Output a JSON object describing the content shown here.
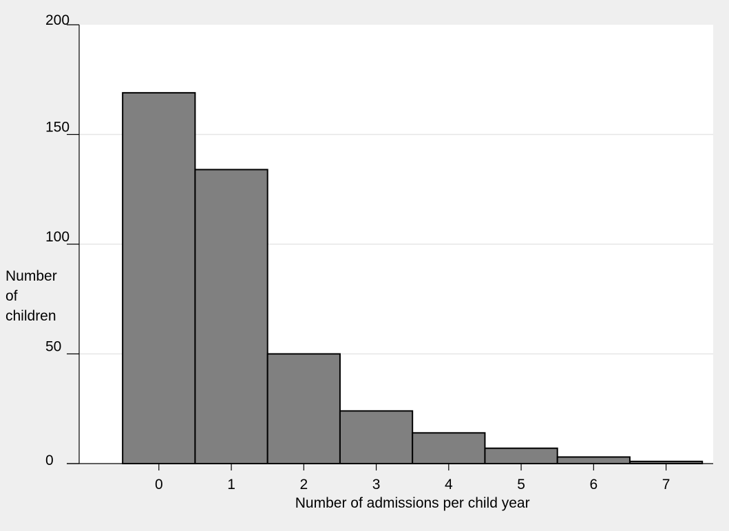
{
  "chart_data": {
    "type": "bar",
    "title": "",
    "xlabel": "Number of admissions per child year",
    "ylabel_lines": [
      "Number",
      "of",
      "children"
    ],
    "categories": [
      "0",
      "1",
      "2",
      "3",
      "4",
      "5",
      "6",
      "7"
    ],
    "values": [
      169,
      134,
      50,
      24,
      14,
      7,
      3,
      1
    ],
    "ylim": [
      0,
      200
    ],
    "yticks": [
      0,
      50,
      100,
      150,
      200
    ],
    "grid": true,
    "bar_color": "#808080",
    "bar_edge_color": "#000000",
    "plot_background": "#ffffff",
    "figure_background": "#efefef",
    "grid_color": "#e6e6e6"
  }
}
